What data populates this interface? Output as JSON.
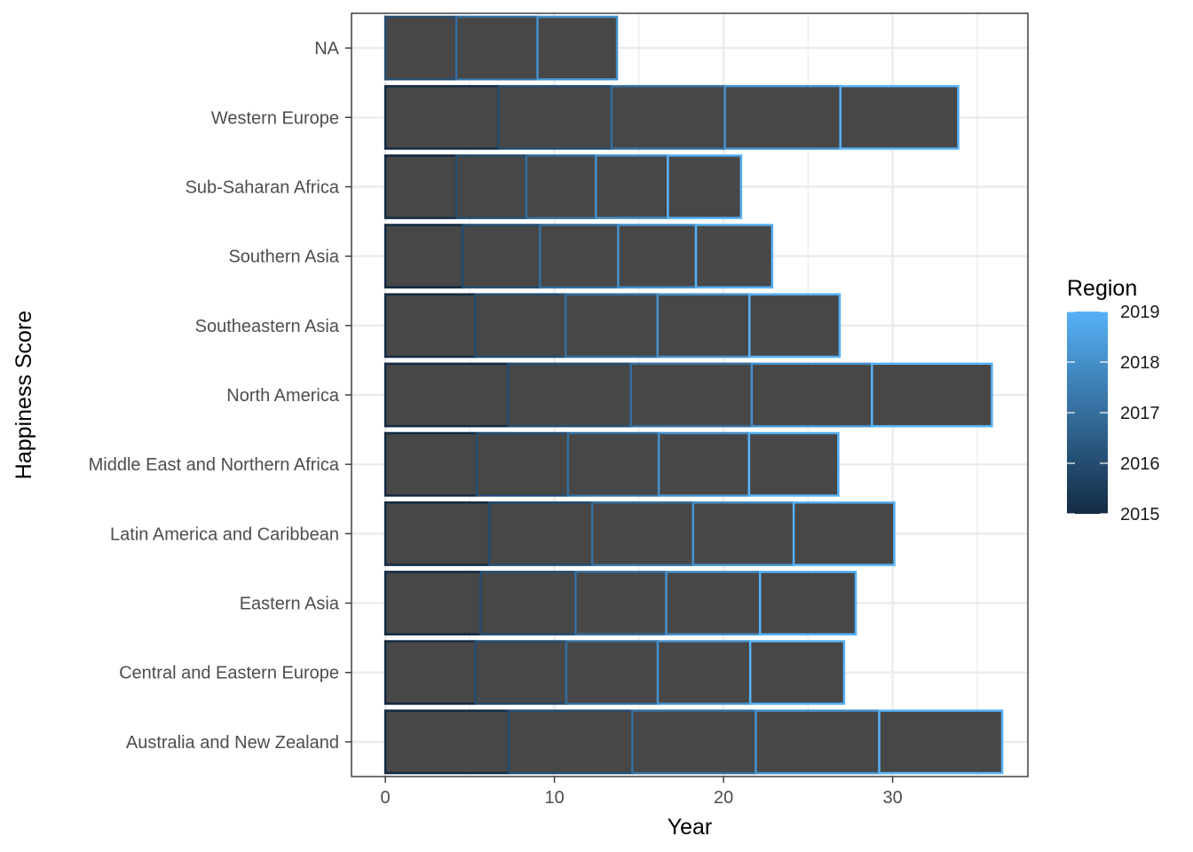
{
  "chart_data": {
    "type": "bar",
    "orientation": "horizontal",
    "stacked": true,
    "xlabel": "Year",
    "ylabel": "Happiness Score",
    "xlim": [
      -2,
      38
    ],
    "xticks": [
      0,
      10,
      20,
      30
    ],
    "grid": true,
    "bar_fill": "#474747",
    "categories": [
      "Australia and New Zealand",
      "Central and Eastern Europe",
      "Eastern Asia",
      "Latin America and Caribbean",
      "Middle East and Northern Africa",
      "North America",
      "Southeastern Asia",
      "Southern Asia",
      "Sub-Saharan Africa",
      "Western Europe",
      "NA"
    ],
    "series": [
      {
        "name": "2015",
        "values": [
          7.29,
          5.33,
          5.63,
          6.14,
          5.41,
          7.27,
          5.32,
          4.58,
          4.2,
          6.69,
          0
        ]
      },
      {
        "name": "2016",
        "values": [
          7.32,
          5.37,
          5.62,
          6.1,
          5.39,
          7.25,
          5.34,
          4.56,
          4.14,
          6.69,
          4.2
        ]
      },
      {
        "name": "2017",
        "values": [
          7.3,
          5.41,
          5.36,
          5.96,
          5.37,
          7.15,
          5.44,
          4.63,
          4.11,
          6.7,
          4.8
        ]
      },
      {
        "name": "2018",
        "values": [
          7.3,
          5.47,
          5.55,
          5.95,
          5.34,
          7.11,
          5.43,
          4.6,
          4.26,
          6.83,
          4.7
        ]
      },
      {
        "name": "2019",
        "values": [
          7.27,
          5.55,
          5.66,
          5.95,
          5.28,
          7.09,
          5.34,
          4.51,
          4.33,
          6.97,
          0
        ]
      }
    ],
    "legend": {
      "title": "Region",
      "labels": [
        "2019",
        "2018",
        "2017",
        "2016",
        "2015"
      ],
      "placement": "right",
      "color_low": "#132b43",
      "color_high": "#56b1f7"
    }
  }
}
